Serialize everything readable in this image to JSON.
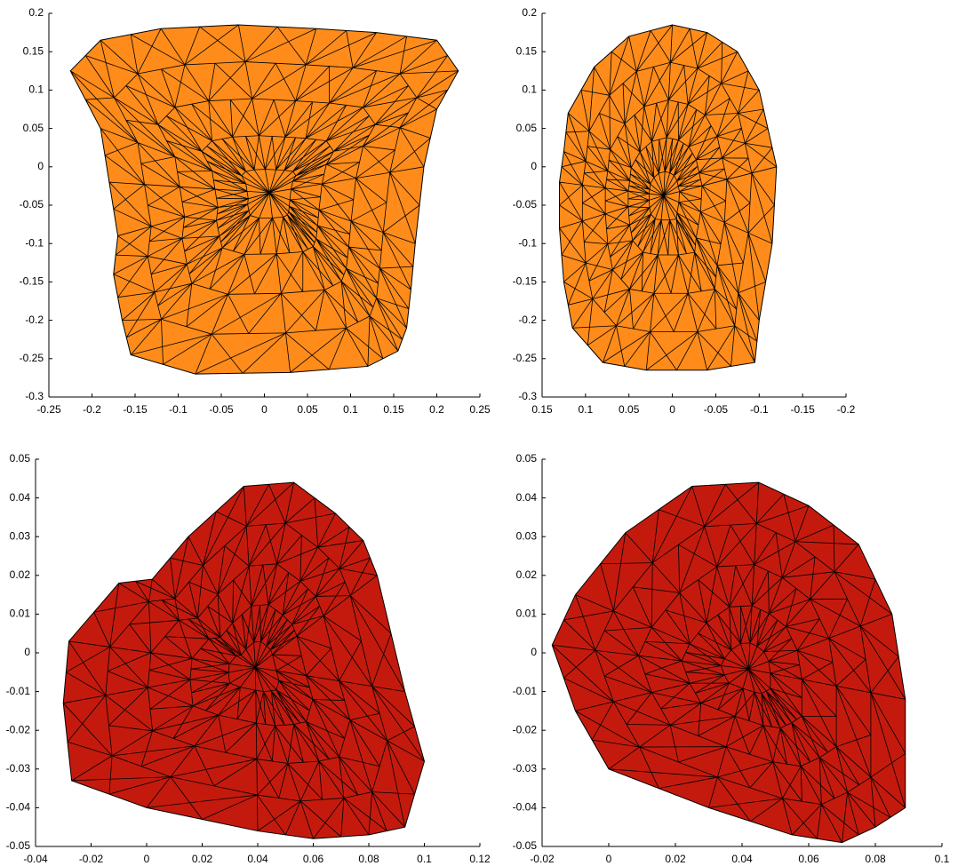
{
  "chart_data": [
    {
      "type": "mesh",
      "color": "#ff8c1a",
      "x": [
        -0.225,
        -0.19,
        -0.12,
        -0.03,
        0.06,
        0.13,
        0.2,
        0.225,
        0.2,
        0.185,
        0.175,
        0.17,
        0.165,
        0.155,
        0.12,
        0.03,
        -0.08,
        -0.155,
        -0.165,
        -0.175,
        -0.17,
        -0.18,
        -0.19
      ],
      "values": [
        0.125,
        0.165,
        0.18,
        0.185,
        0.18,
        0.175,
        0.165,
        0.125,
        0.075,
        0.0,
        -0.1,
        -0.16,
        -0.21,
        -0.24,
        -0.26,
        -0.268,
        -0.27,
        -0.245,
        -0.2,
        -0.14,
        -0.09,
        -0.02,
        0.05
      ],
      "xlim": [
        -0.25,
        0.25
      ],
      "xticks": [
        -0.25,
        -0.2,
        -0.15,
        -0.1,
        -0.05,
        0,
        0.05,
        0.1,
        0.15,
        0.2,
        0.25
      ],
      "ylim": [
        -0.3,
        0.2
      ],
      "yticks": [
        -0.3,
        -0.25,
        -0.2,
        -0.15,
        -0.1,
        -0.05,
        0,
        0.05,
        0.1,
        0.15,
        0.2
      ]
    },
    {
      "type": "mesh",
      "color": "#ff8c1a",
      "x": [
        0.125,
        0.12,
        0.09,
        0.05,
        0.0,
        -0.04,
        -0.075,
        -0.1,
        -0.11,
        -0.12,
        -0.115,
        -0.1,
        -0.095,
        -0.04,
        0.03,
        0.08,
        0.115,
        0.125,
        0.13,
        0.13
      ],
      "values": [
        0.02,
        0.07,
        0.13,
        0.17,
        0.185,
        0.175,
        0.15,
        0.1,
        0.05,
        0.0,
        -0.1,
        -0.2,
        -0.255,
        -0.265,
        -0.265,
        -0.255,
        -0.21,
        -0.15,
        -0.08,
        -0.02
      ],
      "xlim": [
        0.15,
        -0.2
      ],
      "xticks": [
        0.15,
        0.1,
        0.05,
        0,
        -0.05,
        -0.1,
        -0.15,
        -0.2
      ],
      "ylim": [
        -0.3,
        0.2
      ],
      "yticks": [
        -0.3,
        -0.25,
        -0.2,
        -0.15,
        -0.1,
        -0.05,
        0,
        0.05,
        0.1,
        0.15,
        0.2
      ]
    },
    {
      "type": "mesh",
      "color": "#c41a0e",
      "x": [
        -0.03,
        -0.028,
        -0.01,
        0.002,
        0.015,
        0.035,
        0.053,
        0.068,
        0.078,
        0.083,
        0.093,
        0.1,
        0.093,
        0.08,
        0.06,
        0.04,
        0.0,
        -0.027
      ],
      "values": [
        -0.013,
        0.003,
        0.018,
        0.019,
        0.03,
        0.043,
        0.044,
        0.036,
        0.029,
        0.02,
        -0.01,
        -0.028,
        -0.045,
        -0.047,
        -0.048,
        -0.046,
        -0.04,
        -0.033
      ],
      "xlim": [
        -0.04,
        0.12
      ],
      "xticks": [
        -0.04,
        -0.02,
        0,
        0.02,
        0.04,
        0.06,
        0.08,
        0.1,
        0.12
      ],
      "ylim": [
        -0.05,
        0.05
      ],
      "yticks": [
        -0.05,
        -0.04,
        -0.03,
        -0.02,
        -0.01,
        0,
        0.01,
        0.02,
        0.03,
        0.04,
        0.05
      ]
    },
    {
      "type": "mesh",
      "color": "#c41a0e",
      "x": [
        -0.017,
        -0.01,
        0.005,
        0.025,
        0.045,
        0.06,
        0.075,
        0.085,
        0.089,
        0.089,
        0.08,
        0.07,
        0.055,
        0.03,
        0.0,
        -0.01
      ],
      "values": [
        0.002,
        0.015,
        0.031,
        0.043,
        0.044,
        0.038,
        0.028,
        0.01,
        -0.012,
        -0.04,
        -0.045,
        -0.049,
        -0.047,
        -0.04,
        -0.03,
        -0.015
      ],
      "xlim": [
        -0.02,
        0.1
      ],
      "xticks": [
        -0.02,
        0,
        0.02,
        0.04,
        0.06,
        0.08,
        0.1
      ],
      "ylim": [
        -0.05,
        0.05
      ],
      "yticks": [
        -0.05,
        -0.04,
        -0.03,
        -0.02,
        -0.01,
        0,
        0.01,
        0.02,
        0.03,
        0.04,
        0.05
      ]
    }
  ]
}
